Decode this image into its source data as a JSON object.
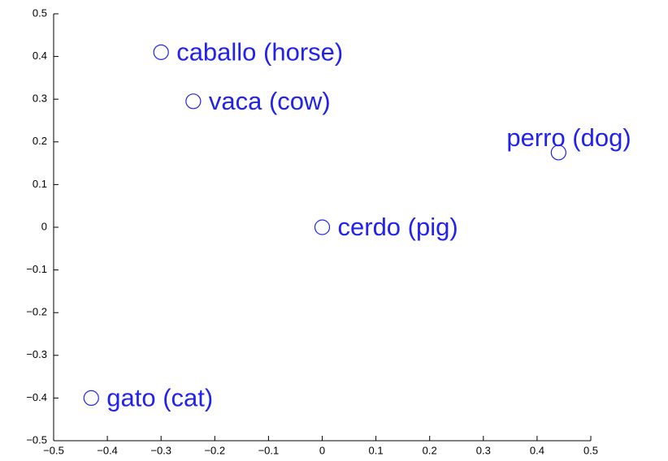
{
  "chart_data": {
    "type": "scatter",
    "labels": [
      "caballo (horse)",
      "vaca (cow)",
      "perro (dog)",
      "cerdo (pig)",
      "gato (cat)"
    ],
    "x": [
      -0.3,
      -0.24,
      0.44,
      0,
      -0.43
    ],
    "values": [
      0.41,
      0.295,
      0.175,
      0,
      -0.4
    ],
    "color": "#2222ee",
    "xlim": [
      -0.5,
      0.5
    ],
    "ylim": [
      -0.5,
      0.5
    ],
    "xticks": [
      {
        "value": -0.5,
        "label": "−0.5"
      },
      {
        "value": -0.4,
        "label": "−0.4"
      },
      {
        "value": -0.3,
        "label": "−0.3"
      },
      {
        "value": -0.2,
        "label": "−0.2"
      },
      {
        "value": -0.1,
        "label": "−0.1"
      },
      0,
      0.1,
      0.2,
      0.3,
      0.4,
      0.5
    ],
    "yticks": [
      {
        "value": -0.5,
        "label": "−0.5"
      },
      {
        "value": -0.4,
        "label": "−0.4"
      },
      {
        "value": -0.3,
        "label": "−0.3"
      },
      {
        "value": -0.2,
        "label": "−0.2"
      },
      {
        "value": -0.1,
        "label": "−0.1"
      },
      0,
      0.1,
      0.2,
      0.3,
      0.4,
      0.5
    ]
  }
}
